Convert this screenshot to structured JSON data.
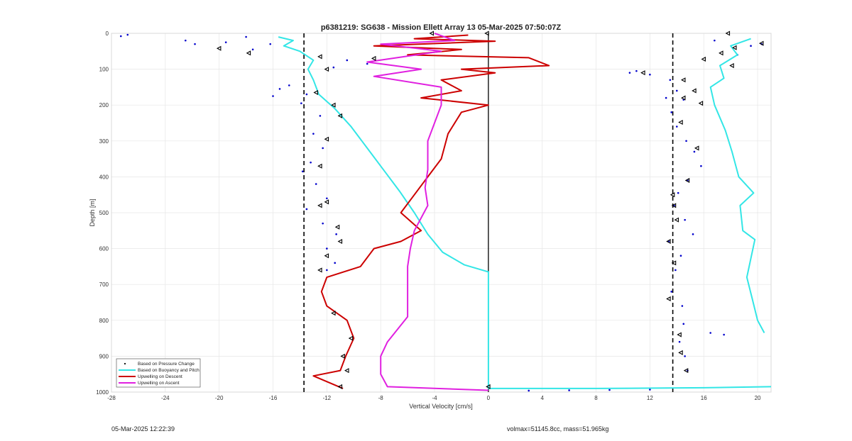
{
  "chart_data": {
    "type": "line",
    "title": "p6381219: SG638 - Mission Ellett Array 13 05-Mar-2025 07:50:07Z",
    "xlabel": "Vertical Velocity [cm/s]",
    "ylabel": "Depth [m]",
    "xlim": [
      -28,
      21
    ],
    "ylim": [
      0,
      1000
    ],
    "y_reversed": true,
    "xticks": [
      -28,
      -24,
      -20,
      -16,
      -12,
      -8,
      -4,
      0,
      4,
      8,
      12,
      16,
      20
    ],
    "yticks": [
      0,
      100,
      200,
      300,
      400,
      500,
      600,
      700,
      800,
      900,
      1000
    ],
    "grid": true,
    "legend_position": "bottom-left",
    "reference_lines": [
      {
        "kind": "dashed",
        "x": -13.7
      },
      {
        "kind": "solid",
        "x": 0
      },
      {
        "kind": "dashed",
        "x": 13.7
      }
    ],
    "series": [
      {
        "name": "Based on Pressure Change",
        "style": "dots",
        "color": "#0000cc",
        "points": [
          {
            "x": -27.3,
            "y": 8
          },
          {
            "x": -26.8,
            "y": 4
          },
          {
            "x": -22.5,
            "y": 20
          },
          {
            "x": -21.8,
            "y": 30
          },
          {
            "x": -19.5,
            "y": 25
          },
          {
            "x": -18.0,
            "y": 10
          },
          {
            "x": -17.5,
            "y": 45
          },
          {
            "x": -16.2,
            "y": 30
          },
          {
            "x": -15.5,
            "y": 155
          },
          {
            "x": -16.0,
            "y": 175
          },
          {
            "x": -14.8,
            "y": 145
          },
          {
            "x": -13.5,
            "y": 170
          },
          {
            "x": -13.9,
            "y": 195
          },
          {
            "x": -12.5,
            "y": 230
          },
          {
            "x": -13.0,
            "y": 280
          },
          {
            "x": -12.3,
            "y": 320
          },
          {
            "x": -13.2,
            "y": 360
          },
          {
            "x": -13.8,
            "y": 385
          },
          {
            "x": -12.8,
            "y": 420
          },
          {
            "x": -12.0,
            "y": 460
          },
          {
            "x": -13.5,
            "y": 490
          },
          {
            "x": -12.3,
            "y": 530
          },
          {
            "x": -11.3,
            "y": 560
          },
          {
            "x": -12.0,
            "y": 600
          },
          {
            "x": -11.4,
            "y": 640
          },
          {
            "x": -12.0,
            "y": 660
          },
          {
            "x": -10.5,
            "y": 75
          },
          {
            "x": -9.0,
            "y": 85
          },
          {
            "x": -11.5,
            "y": 95
          },
          {
            "x": 11.0,
            "y": 105
          },
          {
            "x": 10.5,
            "y": 110
          },
          {
            "x": 12.0,
            "y": 115
          },
          {
            "x": 13.5,
            "y": 130
          },
          {
            "x": 14.0,
            "y": 160
          },
          {
            "x": 13.2,
            "y": 180
          },
          {
            "x": 14.5,
            "y": 185
          },
          {
            "x": 13.6,
            "y": 220
          },
          {
            "x": 14.0,
            "y": 260
          },
          {
            "x": 14.7,
            "y": 300
          },
          {
            "x": 15.3,
            "y": 330
          },
          {
            "x": 15.8,
            "y": 370
          },
          {
            "x": 14.8,
            "y": 410
          },
          {
            "x": 14.1,
            "y": 445
          },
          {
            "x": 13.8,
            "y": 480
          },
          {
            "x": 14.6,
            "y": 520
          },
          {
            "x": 15.2,
            "y": 560
          },
          {
            "x": 13.4,
            "y": 580
          },
          {
            "x": 14.3,
            "y": 620
          },
          {
            "x": 13.9,
            "y": 660
          },
          {
            "x": 13.6,
            "y": 720
          },
          {
            "x": 14.4,
            "y": 760
          },
          {
            "x": 14.5,
            "y": 810
          },
          {
            "x": 14.2,
            "y": 860
          },
          {
            "x": 14.6,
            "y": 900
          },
          {
            "x": 14.8,
            "y": 940
          },
          {
            "x": 16.5,
            "y": 835
          },
          {
            "x": 17.5,
            "y": 840
          },
          {
            "x": 16.8,
            "y": 20
          },
          {
            "x": 18.5,
            "y": 60
          },
          {
            "x": 19.5,
            "y": 35
          },
          {
            "x": 20.3,
            "y": 30
          },
          {
            "x": 3.0,
            "y": 996
          },
          {
            "x": 6.0,
            "y": 995
          },
          {
            "x": 9.0,
            "y": 994
          },
          {
            "x": 12.0,
            "y": 993
          }
        ]
      },
      {
        "name": "Based on Buoyancy and Pitch",
        "style": "line",
        "color": "#33e6e6",
        "points": [
          {
            "x": -15.6,
            "y": 10
          },
          {
            "x": -14.5,
            "y": 20
          },
          {
            "x": -15.2,
            "y": 35
          },
          {
            "x": -14.0,
            "y": 50
          },
          {
            "x": -13.0,
            "y": 75
          },
          {
            "x": -13.4,
            "y": 100
          },
          {
            "x": -13.0,
            "y": 130
          },
          {
            "x": -12.6,
            "y": 170
          },
          {
            "x": -11.4,
            "y": 210
          },
          {
            "x": -10.2,
            "y": 260
          },
          {
            "x": -9.0,
            "y": 320
          },
          {
            "x": -7.8,
            "y": 380
          },
          {
            "x": -6.6,
            "y": 440
          },
          {
            "x": -5.5,
            "y": 500
          },
          {
            "x": -4.5,
            "y": 560
          },
          {
            "x": -3.4,
            "y": 610
          },
          {
            "x": -1.8,
            "y": 645
          },
          {
            "x": 0,
            "y": 665
          },
          {
            "x": 0,
            "y": 990
          },
          {
            "x": 8.0,
            "y": 990
          },
          {
            "x": 16.0,
            "y": 988
          },
          {
            "x": 21.0,
            "y": 985
          }
        ]
      },
      {
        "name": "Based on Buoyancy and Pitch (ascent)",
        "style": "line",
        "color": "#33e6e6",
        "points": [
          {
            "x": 20.5,
            "y": 835
          },
          {
            "x": 20.0,
            "y": 800
          },
          {
            "x": 19.6,
            "y": 740
          },
          {
            "x": 19.2,
            "y": 680
          },
          {
            "x": 19.8,
            "y": 575
          },
          {
            "x": 18.9,
            "y": 550
          },
          {
            "x": 18.7,
            "y": 480
          },
          {
            "x": 19.7,
            "y": 445
          },
          {
            "x": 18.6,
            "y": 400
          },
          {
            "x": 18.1,
            "y": 330
          },
          {
            "x": 17.6,
            "y": 270
          },
          {
            "x": 16.8,
            "y": 200
          },
          {
            "x": 16.5,
            "y": 150
          },
          {
            "x": 17.5,
            "y": 125
          },
          {
            "x": 17.2,
            "y": 90
          },
          {
            "x": 18.5,
            "y": 60
          },
          {
            "x": 18.0,
            "y": 35
          },
          {
            "x": 19.5,
            "y": 15
          }
        ]
      },
      {
        "name": "Upwelling on Descent",
        "style": "line",
        "color": "#cc0000",
        "points": [
          {
            "x": -1.5,
            "y": 5
          },
          {
            "x": -5.5,
            "y": 15
          },
          {
            "x": 0.5,
            "y": 22
          },
          {
            "x": -8.5,
            "y": 35
          },
          {
            "x": -2.0,
            "y": 45
          },
          {
            "x": -6.0,
            "y": 60
          },
          {
            "x": 3.0,
            "y": 68
          },
          {
            "x": 4.5,
            "y": 90
          },
          {
            "x": -2.0,
            "y": 100
          },
          {
            "x": 0.5,
            "y": 110
          },
          {
            "x": -3.5,
            "y": 130
          },
          {
            "x": -2.0,
            "y": 160
          },
          {
            "x": -5.0,
            "y": 180
          },
          {
            "x": 0,
            "y": 200
          },
          {
            "x": -2.0,
            "y": 220
          },
          {
            "x": -3.0,
            "y": 280
          },
          {
            "x": -3.5,
            "y": 350
          },
          {
            "x": -4.5,
            "y": 400
          },
          {
            "x": -5.5,
            "y": 450
          },
          {
            "x": -6.5,
            "y": 500
          },
          {
            "x": -5.0,
            "y": 550
          },
          {
            "x": -6.5,
            "y": 580
          },
          {
            "x": -8.5,
            "y": 600
          },
          {
            "x": -9.5,
            "y": 650
          },
          {
            "x": -12.0,
            "y": 680
          },
          {
            "x": -12.4,
            "y": 720
          },
          {
            "x": -12.0,
            "y": 760
          },
          {
            "x": -10.5,
            "y": 800
          },
          {
            "x": -10.0,
            "y": 850
          },
          {
            "x": -10.6,
            "y": 900
          },
          {
            "x": -11.0,
            "y": 940
          },
          {
            "x": -13.0,
            "y": 955
          },
          {
            "x": -10.8,
            "y": 990
          }
        ]
      },
      {
        "name": "Upwelling on Ascent",
        "style": "line",
        "color": "#e020e0",
        "points": [
          {
            "x": -4.0,
            "y": 0
          },
          {
            "x": -2.5,
            "y": 20
          },
          {
            "x": -8.0,
            "y": 30
          },
          {
            "x": -3.5,
            "y": 50
          },
          {
            "x": -9.0,
            "y": 80
          },
          {
            "x": -5.0,
            "y": 100
          },
          {
            "x": -8.5,
            "y": 120
          },
          {
            "x": -3.5,
            "y": 150
          },
          {
            "x": -3.5,
            "y": 200
          },
          {
            "x": -4.0,
            "y": 250
          },
          {
            "x": -4.5,
            "y": 300
          },
          {
            "x": -4.5,
            "y": 380
          },
          {
            "x": -4.7,
            "y": 430
          },
          {
            "x": -4.5,
            "y": 480
          },
          {
            "x": -5.5,
            "y": 550
          },
          {
            "x": -5.8,
            "y": 600
          },
          {
            "x": -6.0,
            "y": 650
          },
          {
            "x": -6.0,
            "y": 720
          },
          {
            "x": -6.0,
            "y": 790
          },
          {
            "x": -7.5,
            "y": 860
          },
          {
            "x": -8.0,
            "y": 900
          },
          {
            "x": -8.0,
            "y": 950
          },
          {
            "x": -7.5,
            "y": 985
          },
          {
            "x": 0,
            "y": 995
          }
        ]
      }
    ],
    "markers": {
      "style": "open-triangle",
      "color": "#000000",
      "points": [
        {
          "x": -4.2,
          "y": 0
        },
        {
          "x": -0.1,
          "y": 0
        },
        {
          "x": -17.8,
          "y": 55
        },
        {
          "x": -20.0,
          "y": 42
        },
        {
          "x": -12.5,
          "y": 65
        },
        {
          "x": -8.5,
          "y": 70
        },
        {
          "x": -12.0,
          "y": 100
        },
        {
          "x": -12.8,
          "y": 165
        },
        {
          "x": -11.5,
          "y": 200
        },
        {
          "x": -11.0,
          "y": 230
        },
        {
          "x": -12.0,
          "y": 295
        },
        {
          "x": -12.5,
          "y": 370
        },
        {
          "x": -12.0,
          "y": 470
        },
        {
          "x": -12.5,
          "y": 480
        },
        {
          "x": -11.2,
          "y": 540
        },
        {
          "x": -11.0,
          "y": 580
        },
        {
          "x": -12.0,
          "y": 620
        },
        {
          "x": -12.5,
          "y": 660
        },
        {
          "x": -11.5,
          "y": 780
        },
        {
          "x": -10.2,
          "y": 850
        },
        {
          "x": -10.8,
          "y": 900
        },
        {
          "x": -10.5,
          "y": 940
        },
        {
          "x": -11.0,
          "y": 985
        },
        {
          "x": 0,
          "y": 985
        },
        {
          "x": 17.8,
          "y": 0
        },
        {
          "x": 17.3,
          "y": 55
        },
        {
          "x": 16.0,
          "y": 72
        },
        {
          "x": 18.3,
          "y": 40
        },
        {
          "x": 20.3,
          "y": 28
        },
        {
          "x": 18.1,
          "y": 90
        },
        {
          "x": 11.5,
          "y": 110
        },
        {
          "x": 14.5,
          "y": 130
        },
        {
          "x": 15.3,
          "y": 160
        },
        {
          "x": 14.5,
          "y": 180
        },
        {
          "x": 15.8,
          "y": 195
        },
        {
          "x": 14.3,
          "y": 248
        },
        {
          "x": 15.5,
          "y": 320
        },
        {
          "x": 14.8,
          "y": 410
        },
        {
          "x": 13.7,
          "y": 450
        },
        {
          "x": 13.8,
          "y": 480
        },
        {
          "x": 14.0,
          "y": 520
        },
        {
          "x": 13.4,
          "y": 580
        },
        {
          "x": 13.8,
          "y": 640
        },
        {
          "x": 13.4,
          "y": 740
        },
        {
          "x": 14.2,
          "y": 840
        },
        {
          "x": 14.3,
          "y": 890
        },
        {
          "x": 14.7,
          "y": 940
        }
      ]
    }
  },
  "legend": {
    "items": [
      {
        "label": "Based on Pressure Change",
        "kind": "dot",
        "color": "#000000"
      },
      {
        "label": "Based on Buoyancy and Pitch",
        "kind": "line",
        "color": "#33e6e6"
      },
      {
        "label": "Upwelling on Descent",
        "kind": "line",
        "color": "#cc0000"
      },
      {
        "label": "Upwelling on Ascent",
        "kind": "line",
        "color": "#e020e0"
      }
    ]
  },
  "footer": {
    "date": "05-Mar-2025 12:22:39",
    "info": "volmax=51145.8cc, mass=51.965kg"
  }
}
